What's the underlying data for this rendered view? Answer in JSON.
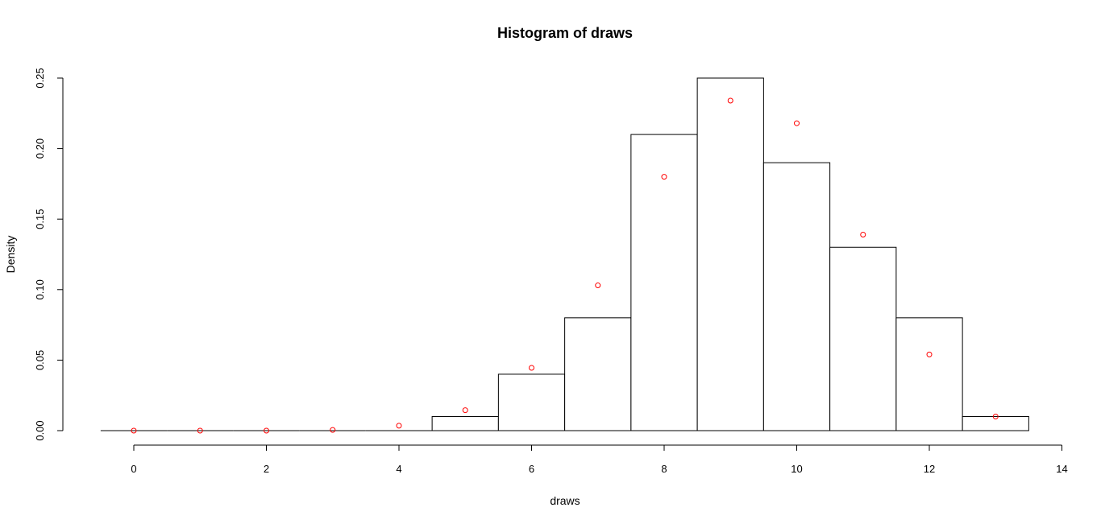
{
  "chart_data": {
    "type": "bar",
    "title": "Histogram of draws",
    "xlabel": "draws",
    "ylabel": "Density",
    "xlim": [
      -0.5,
      14
    ],
    "ylim": [
      0,
      0.25
    ],
    "grid": false,
    "x_ticks": [
      "0",
      "2",
      "4",
      "6",
      "8",
      "10",
      "12",
      "14"
    ],
    "y_ticks": [
      "0.00",
      "0.05",
      "0.10",
      "0.15",
      "0.20",
      "0.25"
    ],
    "bins": [
      {
        "x0": -0.5,
        "x1": 0.5,
        "density": 0
      },
      {
        "x0": 0.5,
        "x1": 1.5,
        "density": 0
      },
      {
        "x0": 1.5,
        "x1": 2.5,
        "density": 0
      },
      {
        "x0": 2.5,
        "x1": 3.5,
        "density": 0
      },
      {
        "x0": 3.5,
        "x1": 4.5,
        "density": 0
      },
      {
        "x0": 4.5,
        "x1": 5.5,
        "density": 0.01
      },
      {
        "x0": 5.5,
        "x1": 6.5,
        "density": 0.04
      },
      {
        "x0": 6.5,
        "x1": 7.5,
        "density": 0.08
      },
      {
        "x0": 7.5,
        "x1": 8.5,
        "density": 0.21
      },
      {
        "x0": 8.5,
        "x1": 9.5,
        "density": 0.25
      },
      {
        "x0": 9.5,
        "x1": 10.5,
        "density": 0.19
      },
      {
        "x0": 10.5,
        "x1": 11.5,
        "density": 0.13
      },
      {
        "x0": 11.5,
        "x1": 12.5,
        "density": 0.08
      },
      {
        "x0": 12.5,
        "x1": 13.5,
        "density": 0.01
      }
    ],
    "points": {
      "x": [
        0,
        1,
        2,
        3,
        4,
        5,
        6,
        7,
        8,
        9,
        10,
        11,
        12,
        13
      ],
      "y": [
        0,
        0,
        0,
        0.0005,
        0.0035,
        0.0145,
        0.0445,
        0.103,
        0.18,
        0.234,
        0.218,
        0.139,
        0.054,
        0.01
      ],
      "color": "#ff0000"
    }
  }
}
